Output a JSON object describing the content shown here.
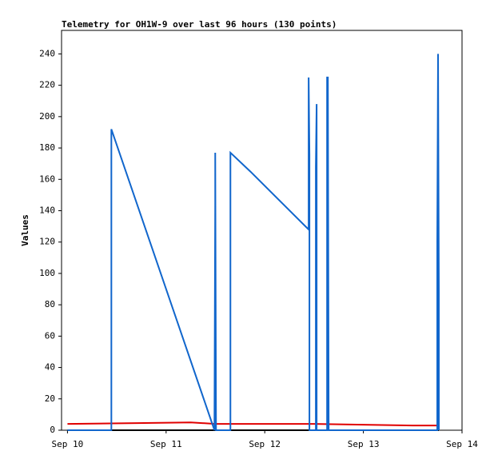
{
  "chart_data": {
    "type": "line",
    "title": "Telemetry for OH1W-9 over last 96 hours (130 points)",
    "ylabel": "Values",
    "xlim": [
      9.94,
      14
    ],
    "ylim": [
      0,
      255
    ],
    "xticks": [
      {
        "value": 10,
        "label": "Sep 10"
      },
      {
        "value": 11,
        "label": "Sep 11"
      },
      {
        "value": 12,
        "label": "Sep 12"
      },
      {
        "value": 13,
        "label": "Sep 13"
      },
      {
        "value": 14,
        "label": "Sep 14"
      }
    ],
    "yticks": [
      0,
      20,
      40,
      60,
      80,
      100,
      120,
      140,
      160,
      180,
      200,
      220,
      240
    ],
    "series": [
      {
        "color": "#000000",
        "x": [
          10,
          13.765
        ],
        "values": [
          0,
          0
        ]
      },
      {
        "color": "#e00000",
        "x": [
          10,
          10.7,
          11.25,
          11.5,
          12.5,
          13.0,
          13.5,
          13.765
        ],
        "values": [
          4,
          4.5,
          5,
          4,
          4,
          3.5,
          3,
          3
        ]
      },
      {
        "color": "#1166cc",
        "x": [
          10,
          10.445,
          10.445,
          10.445,
          11.49,
          11.498,
          11.498,
          11.506,
          11.652,
          11.652,
          11.652,
          11.652,
          11.854,
          12.445,
          12.445,
          12.453,
          12.453,
          12.453,
          12.518,
          12.518,
          12.526,
          12.526,
          12.632,
          12.632,
          12.64,
          12.648,
          13.749,
          13.749,
          13.757,
          13.765,
          13.765
        ],
        "values": [
          0,
          0,
          97,
          192,
          0,
          145,
          177,
          0,
          0,
          80,
          160,
          177,
          165,
          128,
          225,
          176,
          97,
          0,
          0,
          168,
          208,
          0,
          0,
          225,
          225,
          0,
          0,
          120,
          240,
          88,
          0
        ]
      }
    ]
  }
}
